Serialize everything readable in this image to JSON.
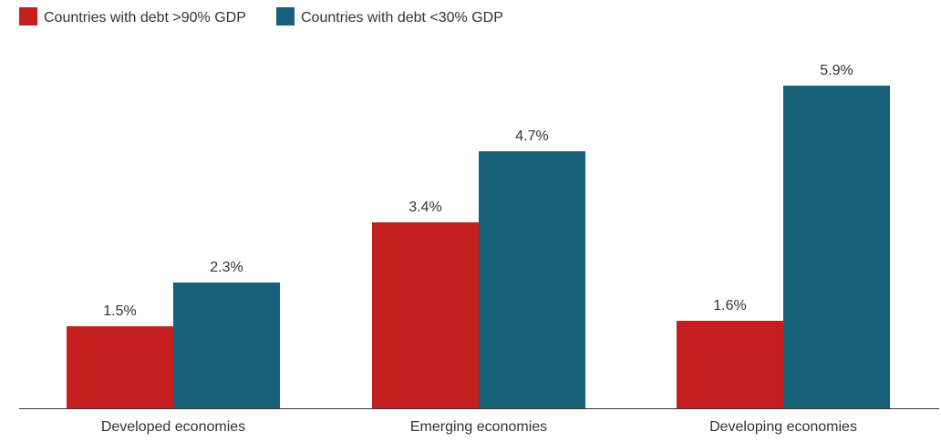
{
  "chart_data": {
    "type": "bar",
    "title": "",
    "xlabel": "",
    "ylabel": "",
    "categories": [
      "Developed economies",
      "Emerging economies",
      "Developing economies"
    ],
    "series": [
      {
        "name": "Countries with debt >90% GDP",
        "color": "#c41e1e",
        "values": [
          1.5,
          3.4,
          1.6
        ],
        "labels": [
          "1.5%",
          "3.4%",
          "1.6%"
        ]
      },
      {
        "name": "Countries with debt <30% GDP",
        "color": "#16607a",
        "values": [
          2.3,
          4.7,
          5.9
        ],
        "labels": [
          "2.3%",
          "4.7%",
          "5.9%"
        ]
      }
    ],
    "ylim": [
      0,
      6.5
    ],
    "grid": false,
    "legend": "top-left"
  }
}
